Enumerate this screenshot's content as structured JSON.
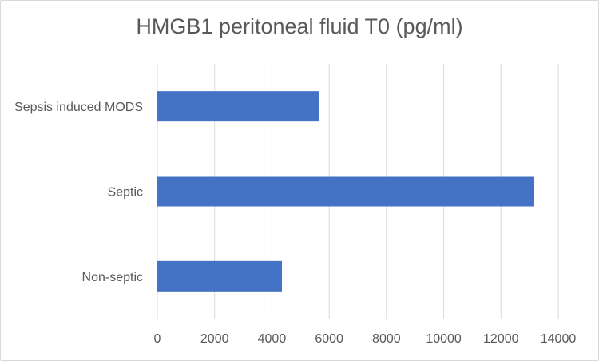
{
  "chart_data": {
    "type": "bar",
    "orientation": "horizontal",
    "title": "HMGB1 peritoneal fluid T0 (pg/ml)",
    "categories": [
      "Sepsis induced MODS",
      "Septic",
      "Non-septic"
    ],
    "values": [
      5650,
      13150,
      4350
    ],
    "xlim": [
      0,
      14000
    ],
    "xticks": [
      "0",
      "2000",
      "4000",
      "6000",
      "8000",
      "10000",
      "12000",
      "14000"
    ],
    "grid": "vertical",
    "legend": "none",
    "bar_color": "#4472c4",
    "grid_color": "#d9d9d9"
  }
}
